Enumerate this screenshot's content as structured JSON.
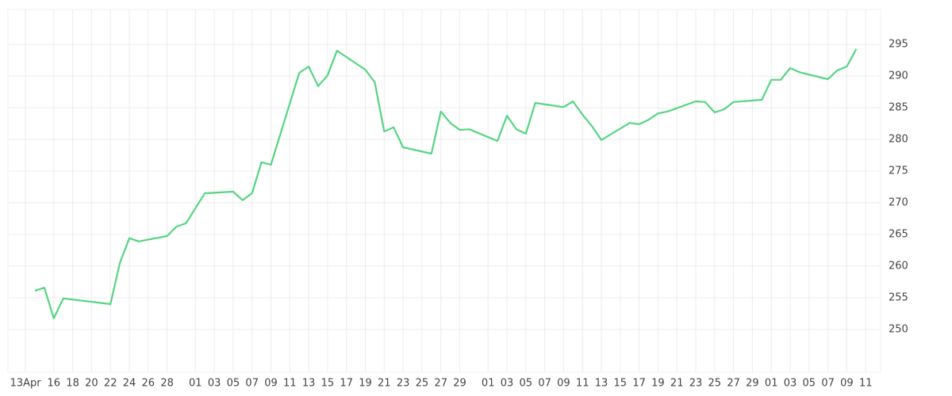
{
  "chart_data": {
    "type": "line",
    "x": [
      "04-14",
      "04-15",
      "04-16",
      "04-17",
      "04-22",
      "04-23",
      "04-24",
      "04-25",
      "04-28",
      "04-29",
      "04-30",
      "05-02",
      "05-05",
      "05-06",
      "05-07",
      "05-08",
      "05-09",
      "05-12",
      "05-13",
      "05-14",
      "05-15",
      "05-16",
      "05-19",
      "05-20",
      "05-21",
      "05-22",
      "05-23",
      "05-26",
      "05-27",
      "05-28",
      "05-29",
      "05-30",
      "06-02",
      "06-03",
      "06-04",
      "06-05",
      "06-06",
      "06-09",
      "06-10",
      "06-11",
      "06-12",
      "06-13",
      "06-16",
      "06-17",
      "06-18",
      "06-19",
      "06-20",
      "06-23",
      "06-24",
      "06-25",
      "06-26",
      "06-27",
      "06-30",
      "07-01",
      "07-02",
      "07-03",
      "07-04",
      "07-07",
      "07-08",
      "07-09",
      "07-10"
    ],
    "series": [
      {
        "color": "#55d582",
        "values": [
          256.1,
          256.6,
          251.75,
          254.9,
          254.0,
          260.5,
          264.4,
          263.9,
          264.75,
          266.25,
          266.75,
          271.5,
          271.75,
          270.4,
          271.5,
          276.4,
          276.0,
          290.5,
          291.5,
          288.4,
          290.1,
          294.0,
          291.0,
          289.0,
          281.25,
          281.9,
          278.75,
          277.75,
          284.4,
          282.6,
          281.5,
          281.6,
          279.75,
          283.75,
          281.6,
          280.9,
          285.75,
          285.1,
          286.0,
          283.9,
          282.1,
          279.9,
          282.6,
          282.4,
          283.1,
          284.1,
          284.4,
          286.0,
          285.9,
          284.25,
          284.75,
          285.9,
          286.25,
          289.4,
          289.4,
          291.25,
          290.6,
          289.5,
          290.9,
          291.5,
          294.25
        ]
      }
    ],
    "xlim": [
      "04-12",
      "07-13"
    ],
    "xticks": [
      {
        "value": "04-13",
        "label": "13Apr"
      },
      {
        "value": "04-16",
        "label": "16"
      },
      {
        "value": "04-18",
        "label": "18"
      },
      {
        "value": "04-20",
        "label": "20"
      },
      {
        "value": "04-22",
        "label": "22"
      },
      {
        "value": "04-24",
        "label": "24"
      },
      {
        "value": "04-26",
        "label": "26"
      },
      {
        "value": "04-28",
        "label": "28"
      },
      {
        "value": "05-01",
        "label": "01"
      },
      {
        "value": "05-03",
        "label": "03"
      },
      {
        "value": "05-05",
        "label": "05"
      },
      {
        "value": "05-07",
        "label": "07"
      },
      {
        "value": "05-09",
        "label": "09"
      },
      {
        "value": "05-11",
        "label": "11"
      },
      {
        "value": "05-13",
        "label": "13"
      },
      {
        "value": "05-15",
        "label": "15"
      },
      {
        "value": "05-17",
        "label": "17"
      },
      {
        "value": "05-19",
        "label": "19"
      },
      {
        "value": "05-21",
        "label": "21"
      },
      {
        "value": "05-23",
        "label": "23"
      },
      {
        "value": "05-25",
        "label": "25"
      },
      {
        "value": "05-27",
        "label": "27"
      },
      {
        "value": "05-29",
        "label": "29"
      },
      {
        "value": "06-01",
        "label": "01"
      },
      {
        "value": "06-03",
        "label": "03"
      },
      {
        "value": "06-05",
        "label": "05"
      },
      {
        "value": "06-07",
        "label": "07"
      },
      {
        "value": "06-09",
        "label": "09"
      },
      {
        "value": "06-11",
        "label": "11"
      },
      {
        "value": "06-13",
        "label": "13"
      },
      {
        "value": "06-15",
        "label": "15"
      },
      {
        "value": "06-17",
        "label": "17"
      },
      {
        "value": "06-19",
        "label": "19"
      },
      {
        "value": "06-21",
        "label": "21"
      },
      {
        "value": "06-23",
        "label": "23"
      },
      {
        "value": "06-25",
        "label": "25"
      },
      {
        "value": "06-27",
        "label": "27"
      },
      {
        "value": "06-29",
        "label": "29"
      },
      {
        "value": "07-01",
        "label": "01"
      },
      {
        "value": "07-03",
        "label": "03"
      },
      {
        "value": "07-05",
        "label": "05"
      },
      {
        "value": "07-07",
        "label": "07"
      },
      {
        "value": "07-09",
        "label": "09"
      },
      {
        "value": "07-11",
        "label": "11"
      }
    ],
    "ylim": [
      243.25,
      300.5
    ],
    "yticks": [
      250,
      255,
      260,
      265,
      270,
      275,
      280,
      285,
      290,
      295
    ],
    "grid": true
  }
}
